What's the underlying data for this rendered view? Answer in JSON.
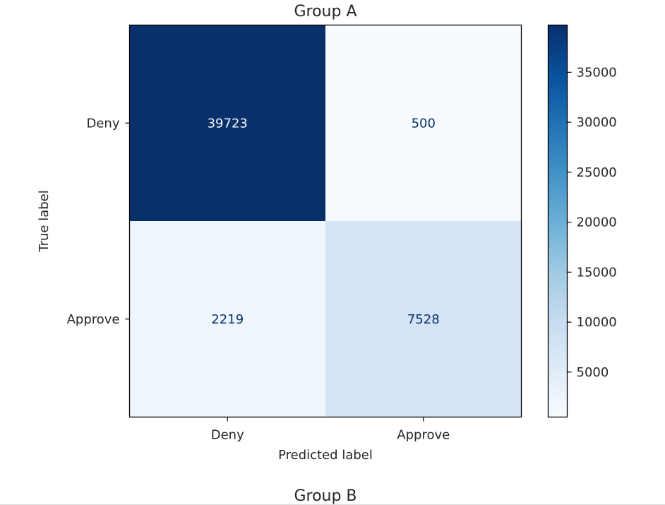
{
  "chart_data": [
    {
      "type": "heatmap",
      "title": "Group A",
      "xlabel": "Predicted label",
      "ylabel": "True label",
      "x_categories": [
        "Deny",
        "Approve"
      ],
      "y_categories": [
        "Deny",
        "Approve"
      ],
      "values": [
        [
          39723,
          500
        ],
        [
          2219,
          7528
        ]
      ],
      "colormap": "Blues",
      "colorbar": {
        "ticks": [
          "5000",
          "10000",
          "15000",
          "20000",
          "25000",
          "30000",
          "35000"
        ],
        "tick_values": [
          5000,
          10000,
          15000,
          20000,
          25000,
          30000,
          35000
        ],
        "range": [
          500,
          39723
        ]
      },
      "grid": false
    },
    {
      "type": "heatmap",
      "title": "Group B"
    }
  ],
  "colors": {
    "cmap_low": "#f7fbff",
    "cmap_high": "#08306b",
    "text_on_dark": "#f7fbff",
    "text_on_light": "#08306b",
    "axis": "#000000"
  }
}
